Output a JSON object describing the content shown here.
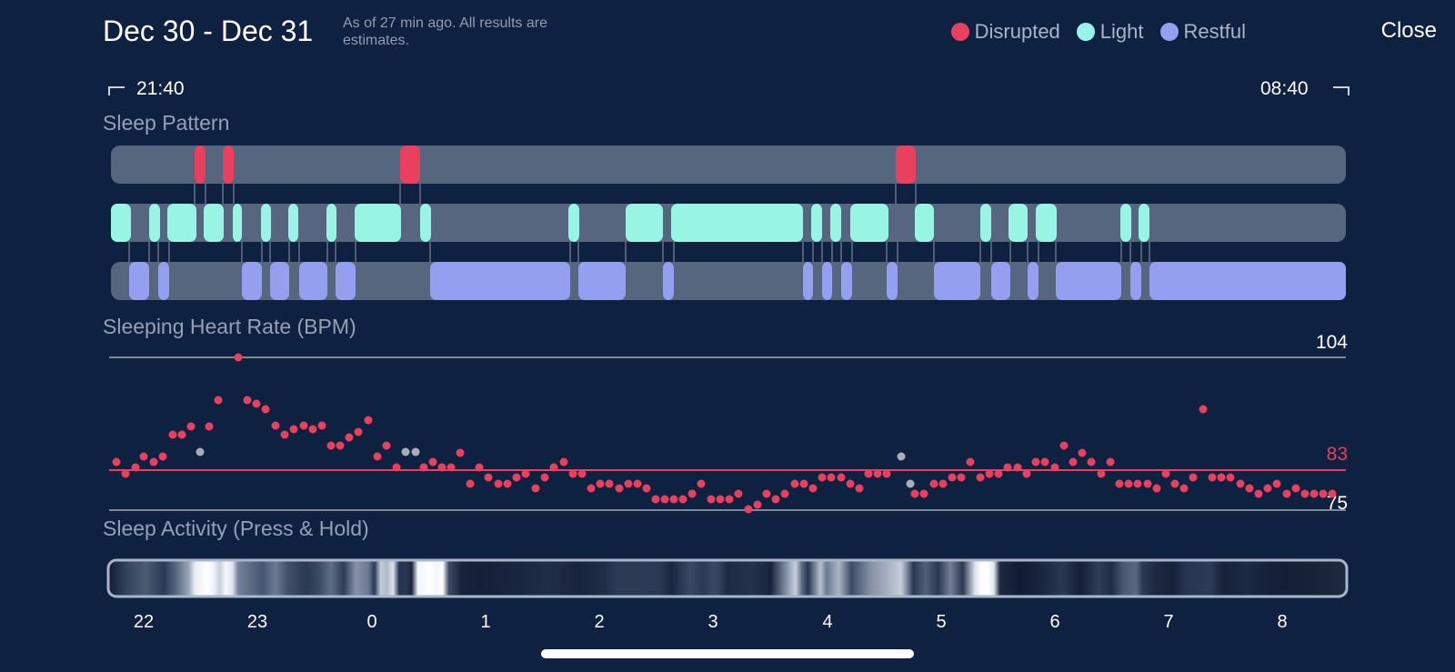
{
  "header": {
    "title": "Dec 30 - Dec 31",
    "subtitle": "As of 27 min ago. All results are estimates.",
    "close_label": "Close"
  },
  "legend": [
    {
      "label": "Disrupted",
      "color": "#e8405e"
    },
    {
      "label": "Light",
      "color": "#98f5e4"
    },
    {
      "label": "Restful",
      "color": "#959ff0"
    }
  ],
  "range": {
    "start": "21:40",
    "end": "08:40"
  },
  "sleep_pattern": {
    "title": "Sleep Pattern",
    "track_color": "#56667e"
  },
  "heart_rate": {
    "title": "Sleeping Heart Rate (BPM)",
    "max_label": "104",
    "avg_label": "83",
    "min_label": "75",
    "avg_color": "#e8405e"
  },
  "activity": {
    "title": "Sleep Activity (Press & Hold)"
  },
  "x_axis": {
    "ticks": [
      "22",
      "23",
      "0",
      "1",
      "2",
      "3",
      "4",
      "5",
      "6",
      "7",
      "8"
    ]
  }
}
